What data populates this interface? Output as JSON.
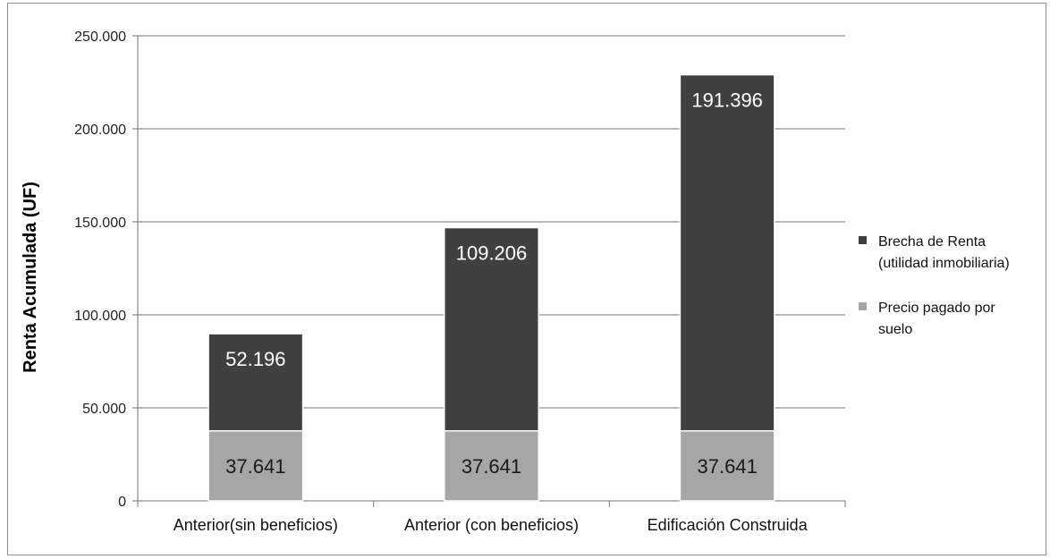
{
  "chart_data": {
    "type": "bar",
    "stacked": true,
    "title": "",
    "xlabel": "",
    "ylabel": "Renta Acumulada (UF)",
    "ylim": [
      0,
      250000
    ],
    "yticks": [
      0,
      50000,
      100000,
      150000,
      200000,
      250000
    ],
    "ytick_labels": [
      "0",
      "50.000",
      "100.000",
      "150.000",
      "200.000",
      "250.000"
    ],
    "grid": true,
    "legend_position": "right",
    "categories": [
      "Anterior(sin beneficios)",
      "Anterior (con beneficios)",
      "Edificación Construida"
    ],
    "series": [
      {
        "name": "Precio pagado por suelo",
        "legend_lines": [
          "Precio pagado por",
          "suelo"
        ],
        "color": "#a6a6a6",
        "label_color": "#1a1a1a",
        "values": [
          37641,
          37641,
          37641
        ],
        "labels": [
          "37.641",
          "37.641",
          "37.641"
        ]
      },
      {
        "name": "Brecha de Renta (utilidad inmobiliaria)",
        "legend_lines": [
          "Brecha de Renta",
          "(utilidad inmobiliaria)"
        ],
        "color": "#404040",
        "label_color": "#ffffff",
        "values": [
          52196,
          109206,
          191396
        ],
        "labels": [
          "52.196",
          "109.206",
          "191.396"
        ]
      }
    ],
    "legend_order": [
      1,
      0
    ]
  }
}
